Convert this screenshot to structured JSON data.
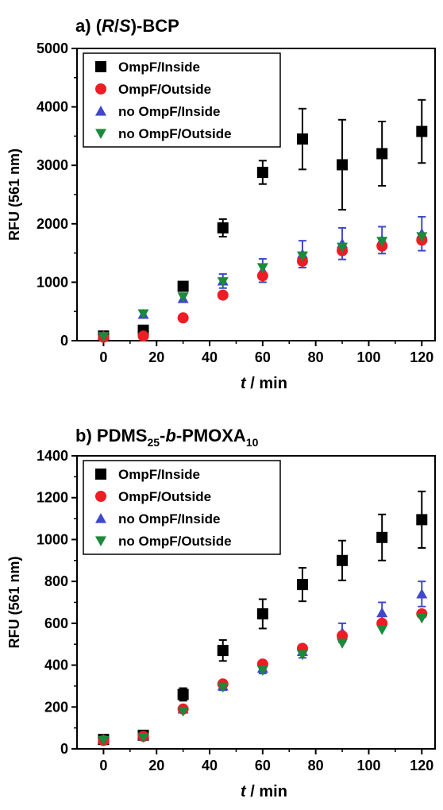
{
  "colors": {
    "OmpF/Inside": "#000000",
    "OmpF/Outside": "#ee1c24",
    "no OmpF/Inside": "#3f48cc",
    "no OmpF/Outside": "#1b8a3a"
  },
  "chart_data": [
    {
      "type": "scatter",
      "panel_label": "a)",
      "title_main": "-BCP",
      "title_prefix": "(",
      "title_italic_1": "R",
      "title_slash": "/",
      "title_italic_2": "S",
      "title_suffix": ")",
      "ylabel": "RFU (561 nm)",
      "xlabel_italic": "t",
      "xlabel_rest": " / min",
      "xlim": [
        -10,
        125
      ],
      "ylim": [
        0,
        5000
      ],
      "xticks": [
        0,
        20,
        40,
        60,
        80,
        100,
        120
      ],
      "yticks": [
        0,
        1000,
        2000,
        3000,
        4000,
        5000
      ],
      "legend_position": "top-left",
      "x": [
        0,
        15,
        30,
        45,
        60,
        75,
        90,
        105,
        120
      ],
      "series": [
        {
          "name": "OmpF/Inside",
          "marker": "square",
          "values": [
            80,
            180,
            930,
            1930,
            2880,
            3450,
            3010,
            3200,
            3580
          ],
          "errors": [
            0,
            0,
            0,
            150,
            200,
            520,
            770,
            550,
            540
          ]
        },
        {
          "name": "OmpF/Outside",
          "marker": "circle",
          "values": [
            60,
            80,
            390,
            780,
            1110,
            1360,
            1540,
            1620,
            1720
          ],
          "errors": [
            0,
            0,
            0,
            0,
            0,
            0,
            0,
            0,
            0
          ]
        },
        {
          "name": "no OmpF/Inside",
          "marker": "triangle-up",
          "values": [
            80,
            450,
            720,
            1020,
            1200,
            1480,
            1660,
            1720,
            1830
          ],
          "errors": [
            0,
            0,
            60,
            120,
            200,
            230,
            270,
            230,
            290
          ]
        },
        {
          "name": "no OmpF/Outside",
          "marker": "triangle-down",
          "values": [
            70,
            460,
            750,
            1010,
            1250,
            1450,
            1600,
            1700,
            1780
          ],
          "errors": [
            0,
            0,
            0,
            0,
            0,
            0,
            0,
            0,
            0
          ]
        }
      ]
    },
    {
      "type": "scatter",
      "panel_label": "b)",
      "title_main": "PDMS",
      "title_sub_1": "25",
      "title_mid_dash": "-",
      "title_italic": "b",
      "title_mid_dash_2": "-PMOXA",
      "title_sub_2": "10",
      "ylabel": "RFU (561 nm)",
      "xlabel_italic": "t",
      "xlabel_rest": " / min",
      "xlim": [
        -10,
        125
      ],
      "ylim": [
        0,
        1400
      ],
      "xticks": [
        0,
        20,
        40,
        60,
        80,
        100,
        120
      ],
      "yticks": [
        0,
        200,
        400,
        600,
        800,
        1000,
        1200,
        1400
      ],
      "legend_position": "top-left",
      "x": [
        0,
        15,
        30,
        45,
        60,
        75,
        90,
        105,
        120
      ],
      "series": [
        {
          "name": "OmpF/Inside",
          "marker": "square",
          "values": [
            45,
            65,
            260,
            470,
            645,
            785,
            900,
            1010,
            1095
          ],
          "errors": [
            0,
            15,
            30,
            50,
            70,
            80,
            95,
            110,
            135
          ]
        },
        {
          "name": "OmpF/Outside",
          "marker": "circle",
          "values": [
            40,
            60,
            190,
            310,
            405,
            480,
            540,
            600,
            645
          ],
          "errors": [
            0,
            0,
            0,
            0,
            0,
            0,
            0,
            0,
            0
          ]
        },
        {
          "name": "no OmpF/Inside",
          "marker": "triangle-up",
          "values": [
            45,
            60,
            190,
            300,
            385,
            465,
            555,
            650,
            740
          ],
          "errors": [
            0,
            0,
            15,
            20,
            25,
            30,
            45,
            50,
            60
          ]
        },
        {
          "name": "no OmpF/Outside",
          "marker": "triangle-down",
          "values": [
            40,
            55,
            180,
            295,
            375,
            450,
            505,
            570,
            625
          ],
          "errors": [
            0,
            0,
            0,
            0,
            0,
            0,
            0,
            0,
            0
          ]
        }
      ]
    }
  ]
}
